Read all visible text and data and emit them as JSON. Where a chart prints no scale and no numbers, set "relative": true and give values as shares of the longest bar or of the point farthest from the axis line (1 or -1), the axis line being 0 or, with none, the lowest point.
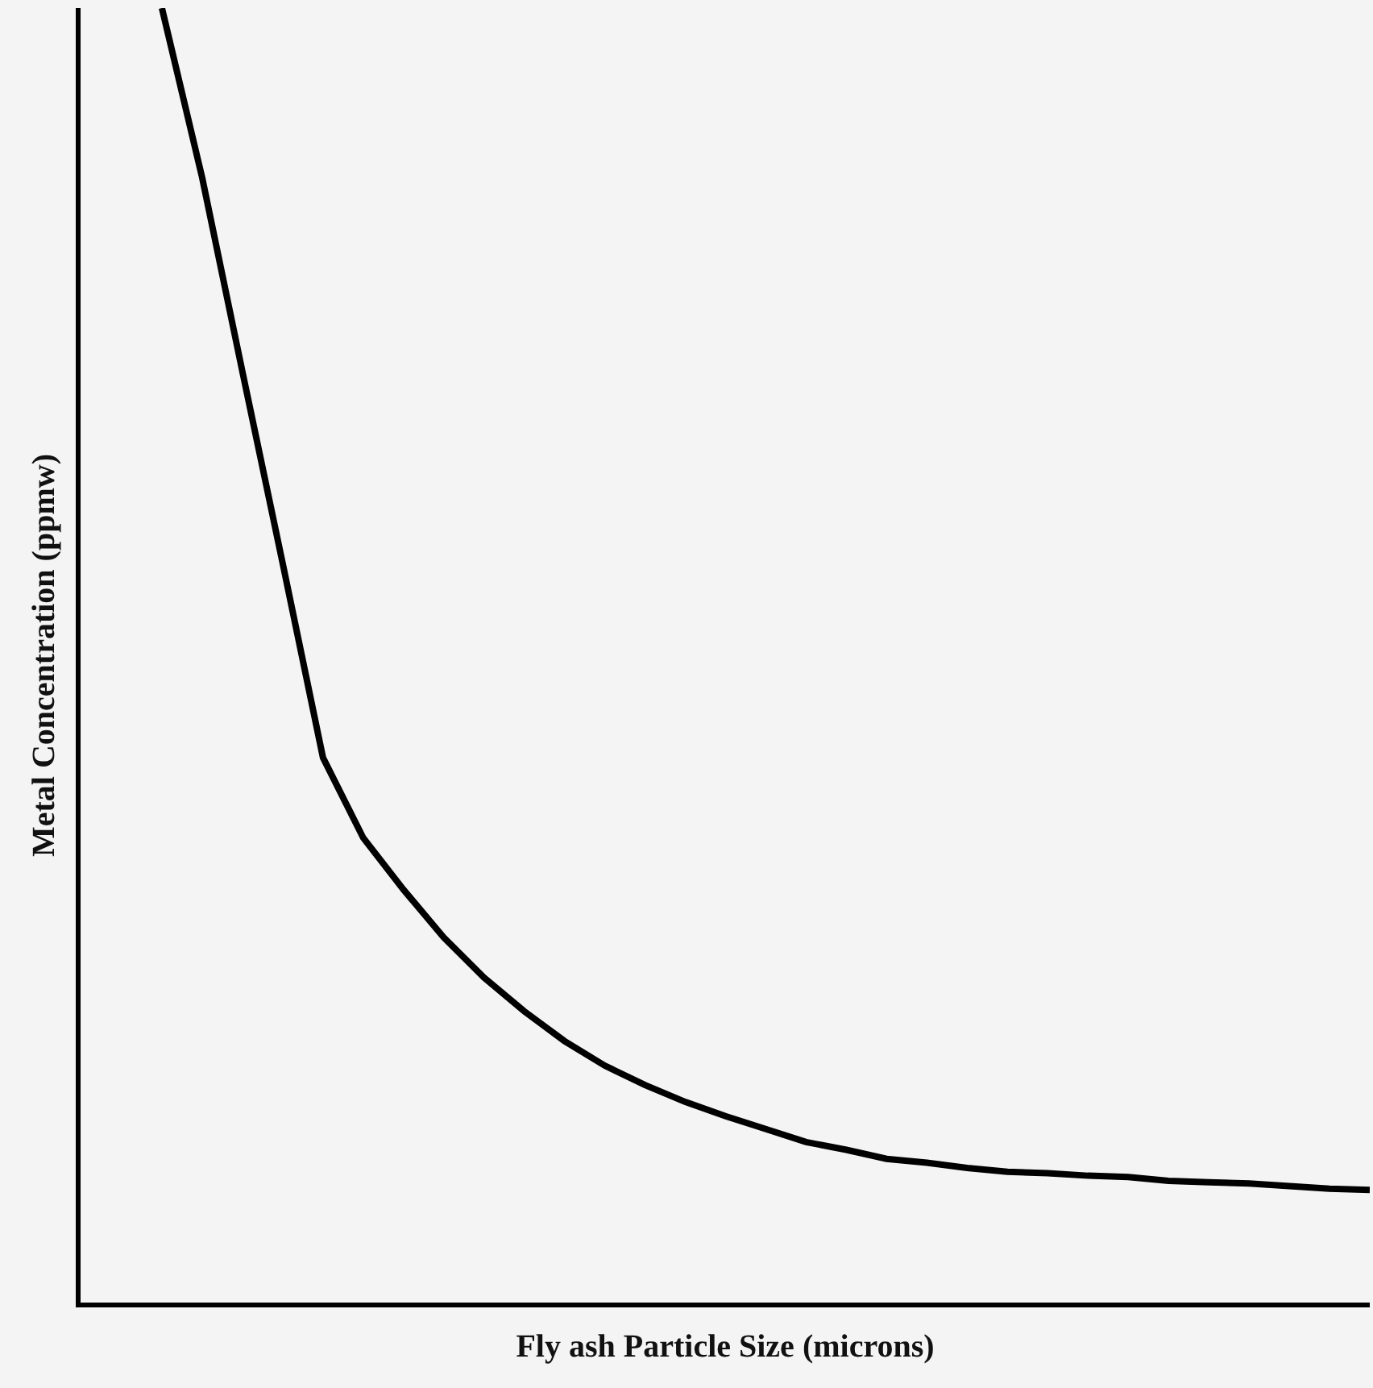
{
  "chart_data": {
    "type": "line",
    "relative": true,
    "xlabel": "Fly ash Particle Size (microns)",
    "ylabel": "Metal Concentration (ppmw)",
    "categories": [
      null,
      null,
      null,
      null,
      null,
      null,
      null,
      null,
      null,
      null,
      null,
      null,
      null,
      null,
      null,
      null,
      null,
      null,
      null,
      null,
      null,
      null,
      null,
      null,
      null,
      null,
      null,
      null,
      null,
      null,
      null,
      null,
      null
    ],
    "series": [
      {
        "color": "#000000",
        "values": [
          null,
          null,
          1.0,
          0.869,
          0.719,
          0.571,
          0.421,
          0.359,
          0.319,
          0.282,
          0.251,
          0.225,
          0.202,
          0.183,
          0.168,
          0.155,
          0.144,
          0.134,
          0.124,
          0.118,
          0.111,
          0.108,
          0.104,
          0.101,
          0.1,
          0.098,
          0.097,
          0.094,
          0.093,
          0.092,
          0.09,
          0.088,
          0.087
        ]
      }
    ]
  }
}
